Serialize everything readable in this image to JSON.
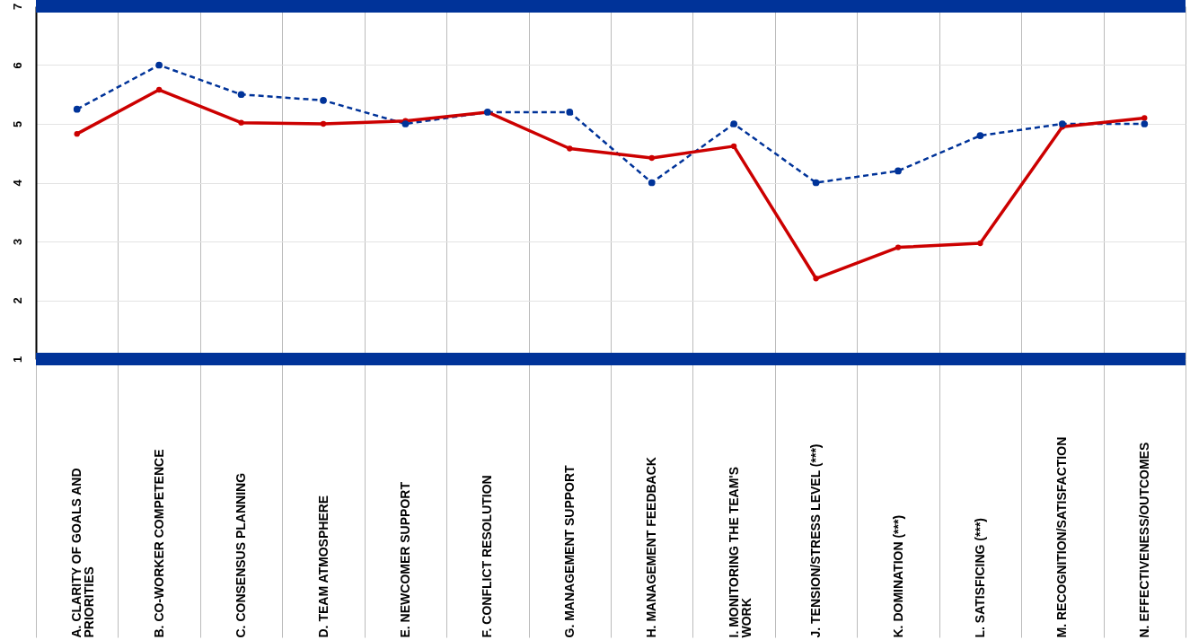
{
  "chart_data": {
    "type": "line",
    "categories": [
      "A. CLARITY OF GOALS AND PRIORITIES",
      "B. CO-WORKER COMPETENCE",
      "C. CONSENSUS PLANNING",
      "D. TEAM ATMOSPHERE",
      "E. NEWCOMER SUPPORT",
      "F. CONFLICT RESOLUTION",
      "G. MANAGEMENT SUPPORT",
      "H. MANAGEMENT FEEDBACK",
      "I. MONITORING THE TEAM'S WORK",
      "J. TENSION/STRESS LEVEL (***)",
      "K. DOMINATION (***)",
      "L. SATISFICING (***)",
      "M. RECOGNITION/SATISFACTION",
      "N. EFFECTIVENESS/OUTCOMES"
    ],
    "series": [
      {
        "color": "#003399",
        "line_style": "dashed",
        "values": [
          5.25,
          6.0,
          5.5,
          5.4,
          5.0,
          5.2,
          5.2,
          4.0,
          5.0,
          4.0,
          4.2,
          4.8,
          5.0,
          5.0
        ]
      },
      {
        "color": "#cc0000",
        "line_style": "solid",
        "values": [
          4.83,
          5.58,
          5.02,
          5.0,
          5.05,
          5.2,
          4.58,
          4.42,
          4.62,
          2.37,
          2.9,
          2.97,
          4.95,
          5.1
        ]
      }
    ],
    "ylim": [
      1,
      7
    ],
    "yticks": [
      1,
      2,
      3,
      4,
      5,
      6,
      7
    ],
    "grid": true,
    "marker": "circle",
    "ref_lines": [
      {
        "axis": "y",
        "value": 7,
        "color": "#003399"
      },
      {
        "axis": "y",
        "value": 1,
        "color": "#003399"
      }
    ]
  }
}
